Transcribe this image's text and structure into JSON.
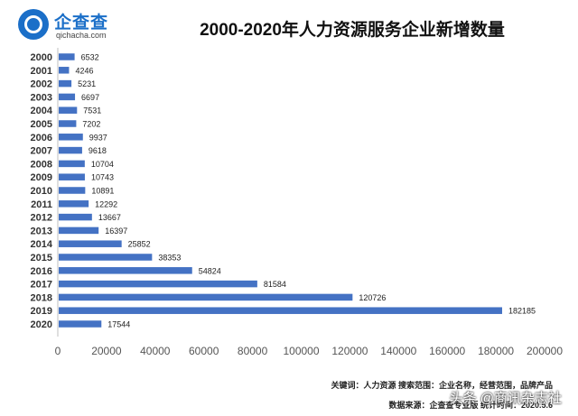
{
  "logo": {
    "name": "企查查",
    "url": "qichacha.com"
  },
  "chart_data": {
    "type": "bar",
    "orientation": "horizontal",
    "title": "2000-2020年人力资源服务企业新增数量",
    "categories": [
      "2000",
      "2001",
      "2002",
      "2003",
      "2004",
      "2005",
      "2006",
      "2007",
      "2008",
      "2009",
      "2010",
      "2011",
      "2012",
      "2013",
      "2014",
      "2015",
      "2016",
      "2017",
      "2018",
      "2019",
      "2020"
    ],
    "values": [
      6532,
      4246,
      5231,
      6697,
      7531,
      7202,
      9937,
      9618,
      10704,
      10743,
      10891,
      12292,
      13667,
      16397,
      25852,
      38353,
      54824,
      81584,
      120726,
      182185,
      17544
    ],
    "xlim": [
      0,
      200000
    ],
    "xticks": [
      "0",
      "20000",
      "40000",
      "60000",
      "80000",
      "100000",
      "120000",
      "140000",
      "160000",
      "180000",
      "200000"
    ],
    "grid": false,
    "bar_color": "#4472c4"
  },
  "footer": {
    "keywords": "关键词：人力资源  搜索范围：企业名称，经营范围，品牌产品",
    "source": "数据来源：企查查专业版  统计时间：2020.5.6"
  },
  "watermark": "头条 @商讯杂志社"
}
